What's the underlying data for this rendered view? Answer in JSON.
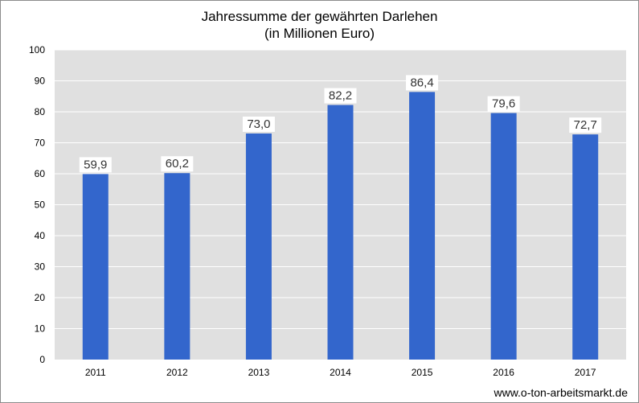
{
  "chart_data": {
    "type": "bar",
    "title": "Jahressumme der gewährten Darlehen",
    "subtitle": "(in Millionen Euro)",
    "xlabel": "",
    "ylabel": "",
    "categories": [
      "2011",
      "2012",
      "2013",
      "2014",
      "2015",
      "2016",
      "2017"
    ],
    "values": [
      59.9,
      60.2,
      73.0,
      82.2,
      86.4,
      79.6,
      72.7
    ],
    "value_labels": [
      "59,9",
      "60,2",
      "73,0",
      "82,2",
      "86,4",
      "79,6",
      "72,7"
    ],
    "ylim": [
      0,
      100
    ],
    "yticks": [
      0,
      10,
      20,
      30,
      40,
      50,
      60,
      70,
      80,
      90,
      100
    ],
    "grid": true,
    "legend": "none",
    "colors": {
      "bar": "#3366cc",
      "plot_background": "#e0e0e0",
      "grid": "#ffffff"
    }
  },
  "source": "www.o-ton-arbeitsmarkt.de"
}
